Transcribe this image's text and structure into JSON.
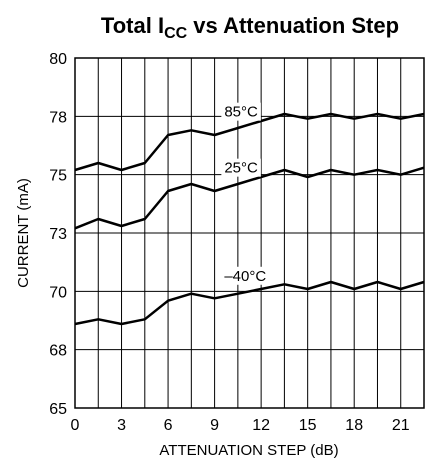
{
  "chart_data": {
    "type": "line",
    "title_main": "Total I",
    "title_sub": "CC",
    "title_rest": " vs Attenuation Step",
    "xlabel": "ATTENUATION STEP (dB)",
    "ylabel": "CURRENT (mA)",
    "xlim": [
      0,
      22.5
    ],
    "ylim": [
      65,
      80
    ],
    "x_ticks": [
      0,
      3,
      6,
      9,
      12,
      15,
      18,
      21
    ],
    "x_tick_labels": [
      "0",
      "3",
      "6",
      "9",
      "12",
      "15",
      "18",
      "21"
    ],
    "y_ticks": [
      65,
      67.5,
      70,
      72.5,
      75,
      77.5,
      80
    ],
    "y_tick_labels": [
      "65",
      "68",
      "70",
      "73",
      "75",
      "78",
      "80"
    ],
    "grid": true,
    "x": [
      0,
      1.5,
      3,
      4.5,
      6,
      7.5,
      9,
      10.5,
      12,
      13.5,
      15,
      16.5,
      18,
      19.5,
      21,
      22.5
    ],
    "series": [
      {
        "name": "85°C",
        "values": [
          75.2,
          75.5,
          75.2,
          75.5,
          76.7,
          76.9,
          76.7,
          77.0,
          77.3,
          77.6,
          77.4,
          77.6,
          77.4,
          77.6,
          77.4,
          77.6
        ]
      },
      {
        "name": "25°C",
        "values": [
          72.7,
          73.1,
          72.8,
          73.1,
          74.3,
          74.6,
          74.3,
          74.6,
          74.9,
          75.2,
          74.9,
          75.2,
          75.0,
          75.2,
          75.0,
          75.3
        ]
      },
      {
        "name": "–40°C",
        "values": [
          68.6,
          68.8,
          68.6,
          68.8,
          69.6,
          69.9,
          69.7,
          69.9,
          70.1,
          70.3,
          70.1,
          70.4,
          70.1,
          70.4,
          70.1,
          70.4
        ]
      }
    ],
    "series_label_anchor": [
      9.5,
      9.5,
      9.5
    ]
  }
}
